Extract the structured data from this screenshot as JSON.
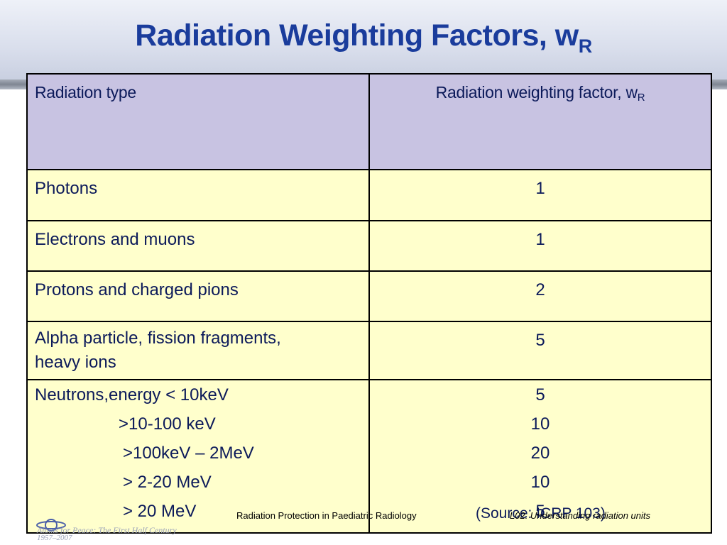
{
  "title": {
    "main": "Radiation Weighting Factors, w",
    "sub": "R"
  },
  "table": {
    "header": {
      "col1": "Radiation type",
      "col2_main": "Radiation weighting factor, w",
      "col2_sub": "R"
    },
    "rows": [
      {
        "type": "Photons",
        "factor": "1"
      },
      {
        "type": "Electrons and muons",
        "factor": "1"
      },
      {
        "type": "Protons and charged pions",
        "factor": "2"
      },
      {
        "type_lines": [
          "Alpha particle, fission fragments,",
          "heavy ions"
        ],
        "factor": "5"
      },
      {
        "type_lines": [
          "Neutrons,energy < 10keV",
          ">10-100 keV",
          ">100keV – 2MeV",
          "> 2-20 MeV",
          "> 20 MeV"
        ],
        "factors": [
          "5",
          "10",
          "20",
          "10",
          "5"
        ]
      }
    ]
  },
  "footer": {
    "center": "Radiation Protection in Paediatric Radiology",
    "source": "(Source: ICRP 103)",
    "right": "L02. Understanding radiation units",
    "left_tagline": "Atoms for Peace: The First Half Century",
    "left_years": "1957–2007"
  },
  "colors": {
    "title": "#1a3c9c",
    "header_bg": "#c8c3e2",
    "row_bg": "#ffffcc",
    "text": "#0c1a5a"
  }
}
